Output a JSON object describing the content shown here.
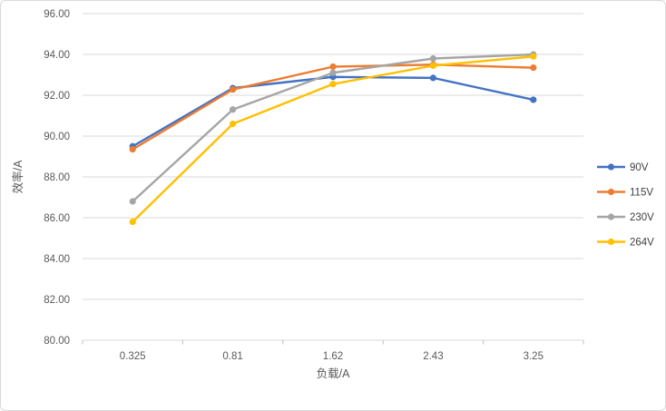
{
  "chart_data": {
    "type": "line",
    "title": "",
    "xlabel": "负载/A",
    "ylabel": "效率/A",
    "categories": [
      "0.325",
      "0.81",
      "1.62",
      "2.43",
      "3.25"
    ],
    "series": [
      {
        "name": "90V",
        "color": "#4472C4",
        "values": [
          89.5,
          92.35,
          92.9,
          92.85,
          91.78
        ]
      },
      {
        "name": "115V",
        "color": "#ED7D31",
        "values": [
          89.35,
          92.28,
          93.4,
          93.5,
          93.35
        ]
      },
      {
        "name": "230V",
        "color": "#A5A5A5",
        "values": [
          86.8,
          91.3,
          93.1,
          93.8,
          94.0
        ]
      },
      {
        "name": "264V",
        "color": "#FFC000",
        "values": [
          85.8,
          90.6,
          92.55,
          93.45,
          93.9
        ]
      }
    ],
    "ylim": [
      80,
      96
    ],
    "ystep": 2,
    "yticks": [
      "80.00",
      "82.00",
      "84.00",
      "86.00",
      "88.00",
      "90.00",
      "92.00",
      "94.00",
      "96.00"
    ],
    "grid": true,
    "legend_position": "right",
    "marker": "circle"
  },
  "colors": {
    "gridline": "#d9d9d9",
    "axis_line": "#d9d9d9",
    "tick_mark": "#bfbfbf",
    "text": "#595959",
    "frame_border": "#d9d9d9",
    "background": "#ffffff"
  }
}
